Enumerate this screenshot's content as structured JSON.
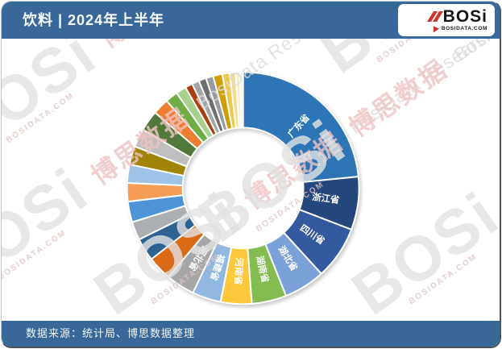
{
  "header": {
    "title": "饮料 | 2024年上半年",
    "logo": {
      "brand": "BOSi",
      "domain": "BOSIDATA.COM"
    }
  },
  "footer": {
    "source": "数据来源：统计局、博思数据整理"
  },
  "watermark": {
    "brand": "BOSi",
    "domain": "BOSIDATA.COM",
    "cn": "博思数据",
    "en": "BosiData Research"
  },
  "colors": {
    "header_bg": "#38689A",
    "footer_bg": "#38689A",
    "logo_red": "#C8372A",
    "watermark_gray": "#E3E3E3",
    "watermark_gray2": "#DBDBDB",
    "watermark_pink": "#F0C4C4",
    "watermark_pink2": "#E3C4C4",
    "slice_separator": "#FFFFFF"
  },
  "chart_data": {
    "type": "pie",
    "donut": true,
    "hole_ratio": 0.52,
    "start_angle_deg": 0,
    "direction": "clockwise",
    "legend": "none",
    "value_note": "share estimated from arc angles, percent",
    "slices": [
      {
        "label": "广东省",
        "value": 22.8,
        "color": "#2E75B6"
      },
      {
        "label": "浙江省",
        "value": 7.2,
        "color": "#24477E"
      },
      {
        "label": "四川省",
        "value": 7.2,
        "color": "#33599E"
      },
      {
        "label": "湖北省",
        "value": 5.6,
        "color": "#7BA2D8"
      },
      {
        "label": "湖南省",
        "value": 4.7,
        "color": "#84BC52"
      },
      {
        "label": "河南省",
        "value": 4.2,
        "color": "#FFC83C"
      },
      {
        "label": "福建省",
        "value": 3.9,
        "color": "#90B8E0"
      },
      {
        "label": "河北省",
        "value": 3.9,
        "color": "#A6A6A6"
      },
      {
        "label": "",
        "value": 3.3,
        "color": "#D96A18"
      },
      {
        "label": "",
        "value": 3.1,
        "color": "#2D6293"
      },
      {
        "label": "",
        "value": 2.5,
        "color": "#ABAFB3"
      },
      {
        "label": "",
        "value": 2.8,
        "color": "#4C94D6"
      },
      {
        "label": "",
        "value": 2.5,
        "color": "#F59C56"
      },
      {
        "label": "",
        "value": 2.5,
        "color": "#9DC3E6"
      },
      {
        "label": "",
        "value": 2.5,
        "color": "#A08406"
      },
      {
        "label": "",
        "value": 2.5,
        "color": "#BFBFBF"
      },
      {
        "label": "",
        "value": 2.8,
        "color": "#50793A"
      },
      {
        "label": "",
        "value": 2.2,
        "color": "#ED7D31"
      },
      {
        "label": "",
        "value": 1.7,
        "color": "#6FAD47"
      },
      {
        "label": "",
        "value": 1.4,
        "color": "#A9D18E"
      },
      {
        "label": "",
        "value": 1.0,
        "color": "#A93E0F"
      },
      {
        "label": "",
        "value": 1.0,
        "color": "#A5A5A5"
      },
      {
        "label": "",
        "value": 1.0,
        "color": "#6E6E6E"
      },
      {
        "label": "",
        "value": 1.0,
        "color": "#989CA1"
      },
      {
        "label": "",
        "value": 1.25,
        "color": "#CC9E07"
      },
      {
        "label": "",
        "value": 1.0,
        "color": "#EDC94B"
      },
      {
        "label": "",
        "value": 0.8,
        "color": "#F3DC8C"
      },
      {
        "label": "",
        "value": 0.6,
        "color": "#F7EFC8"
      },
      {
        "label": "",
        "value": 0.4,
        "color": "#EEF2E8"
      }
    ]
  }
}
